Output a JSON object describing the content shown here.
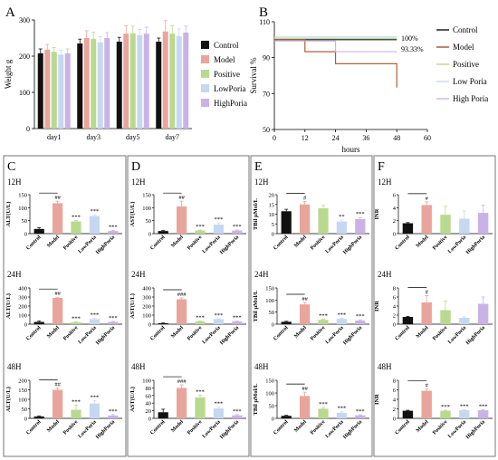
{
  "panel_letters": [
    "A",
    "B",
    "C",
    "D",
    "E",
    "F"
  ],
  "colors": {
    "Control": "#111111",
    "Model": "#e9a59b",
    "Positive": "#b9d98f",
    "LowPoria": "#c6d8f1",
    "HighPoria": "#c9b3e6"
  },
  "chart_data": [
    {
      "panel": "A",
      "type": "bar",
      "ylabel": "Weight g",
      "categories": [
        "day1",
        "day3",
        "day5",
        "day7"
      ],
      "ylim": [
        0,
        300
      ],
      "yticks": [
        0,
        100,
        200,
        300
      ],
      "legend": [
        "Control",
        "Model",
        "Positive",
        "LowPoria",
        "HighPoria"
      ],
      "legend_position": "right",
      "series": [
        {
          "name": "Control",
          "values": [
            208,
            235,
            240,
            240
          ],
          "errors": [
            12,
            12,
            12,
            10
          ]
        },
        {
          "name": "Model",
          "values": [
            218,
            250,
            262,
            268
          ],
          "errors": [
            14,
            20,
            22,
            30
          ]
        },
        {
          "name": "Positive",
          "values": [
            212,
            248,
            263,
            262
          ],
          "errors": [
            12,
            18,
            20,
            22
          ]
        },
        {
          "name": "LowPoria",
          "values": [
            204,
            238,
            258,
            255
          ],
          "errors": [
            12,
            16,
            16,
            20
          ]
        },
        {
          "name": "HighPoria",
          "values": [
            208,
            250,
            262,
            265
          ],
          "errors": [
            12,
            15,
            18,
            18
          ]
        }
      ]
    },
    {
      "panel": "B",
      "type": "line",
      "xlabel": "hours",
      "ylabel": "Survival %",
      "xlim": [
        0,
        60
      ],
      "ylim": [
        50,
        110
      ],
      "xticks": [
        0,
        12,
        24,
        36,
        48,
        60
      ],
      "yticks": [
        50,
        70,
        90,
        110
      ],
      "legend": [
        "Control",
        "Model",
        "Positive",
        "Low Poria",
        "High Poria"
      ],
      "legend_position": "right",
      "annotations": [
        "100%",
        "93.33%"
      ],
      "series": [
        {
          "name": "Control",
          "x": [
            0,
            12,
            24,
            48
          ],
          "y": [
            100,
            100,
            100,
            100
          ]
        },
        {
          "name": "Model",
          "x": [
            0,
            12,
            24,
            48,
            48
          ],
          "y": [
            100,
            93.33,
            86.67,
            86.67,
            73.33
          ]
        },
        {
          "name": "Positive",
          "x": [
            0,
            12,
            24,
            48
          ],
          "y": [
            100,
            100,
            100,
            100
          ]
        },
        {
          "name": "Low Poria",
          "x": [
            0,
            12,
            24,
            48
          ],
          "y": [
            100,
            100,
            100,
            100
          ]
        },
        {
          "name": "High Poria",
          "x": [
            0,
            12,
            24,
            48
          ],
          "y": [
            100,
            100,
            93.33,
            93.33
          ]
        }
      ]
    },
    {
      "panel": "C",
      "type": "bar",
      "ylabel": "ALT(U/L)",
      "categories": [
        "Control",
        "Model",
        "Positive",
        "LowPoria",
        "HighPoria"
      ],
      "subplots": [
        {
          "time": "12H",
          "ylim": [
            0,
            150
          ],
          "yticks": [
            0,
            50,
            100,
            150
          ],
          "values": [
            18,
            117,
            47,
            68,
            10
          ],
          "errors": [
            5,
            8,
            4,
            5,
            2
          ],
          "marks": [
            "",
            "##",
            "***",
            "***",
            "***"
          ]
        },
        {
          "time": "24H",
          "ylim": [
            0,
            400
          ],
          "yticks": [
            0,
            100,
            200,
            300,
            400
          ],
          "values": [
            25,
            290,
            22,
            55,
            25
          ],
          "errors": [
            10,
            8,
            5,
            8,
            4
          ],
          "marks": [
            "",
            "##",
            "***",
            "***",
            "***"
          ]
        },
        {
          "time": "48H",
          "ylim": [
            0,
            200
          ],
          "yticks": [
            0,
            50,
            100,
            150,
            200
          ],
          "values": [
            10,
            150,
            45,
            78,
            15
          ],
          "errors": [
            3,
            10,
            25,
            15,
            5
          ],
          "marks": [
            "",
            "##",
            "***",
            "***",
            "***"
          ]
        }
      ]
    },
    {
      "panel": "D",
      "type": "bar",
      "ylabel": "AST(U/L)",
      "categories": [
        "Control",
        "Model",
        "Positive",
        "LowPoria",
        "HighPoria"
      ],
      "subplots": [
        {
          "time": "12H",
          "ylim": [
            0,
            150
          ],
          "yticks": [
            0,
            50,
            100,
            150
          ],
          "values": [
            10,
            105,
            12,
            35,
            12
          ],
          "errors": [
            2,
            20,
            2,
            6,
            2
          ],
          "marks": [
            "",
            "##",
            "***",
            "***",
            "***"
          ]
        },
        {
          "time": "24H",
          "ylim": [
            0,
            400
          ],
          "yticks": [
            0,
            100,
            200,
            300,
            400
          ],
          "values": [
            10,
            275,
            30,
            55,
            30
          ],
          "errors": [
            3,
            15,
            4,
            5,
            4
          ],
          "marks": [
            "",
            "###",
            "***",
            "***",
            "***"
          ]
        },
        {
          "time": "48H",
          "ylim": [
            0,
            100
          ],
          "yticks": [
            0,
            20,
            40,
            60,
            80,
            100
          ],
          "values": [
            16,
            80,
            55,
            26,
            8
          ],
          "errors": [
            8,
            8,
            6,
            4,
            2
          ],
          "marks": [
            "",
            "###",
            "***",
            "***",
            "***"
          ]
        }
      ]
    },
    {
      "panel": "E",
      "type": "bar",
      "ylabel": "TBil μMol/L",
      "categories": [
        "Control",
        "Model",
        "Positive",
        "LowPoria",
        "HighPoria"
      ],
      "subplots": [
        {
          "time": "12H",
          "ylim": [
            0,
            20
          ],
          "yticks": [
            0,
            5,
            10,
            15,
            20
          ],
          "values": [
            11.5,
            15,
            13,
            6.2,
            7.5
          ],
          "errors": [
            1,
            1.5,
            1.5,
            0.8,
            0.8
          ],
          "marks": [
            "",
            "#",
            "",
            "**",
            "***"
          ]
        },
        {
          "time": "24H",
          "ylim": [
            0,
            150
          ],
          "yticks": [
            0,
            50,
            100,
            150
          ],
          "values": [
            10,
            82,
            18,
            22,
            15
          ],
          "errors": [
            2,
            8,
            3,
            3,
            3
          ],
          "marks": [
            "",
            "##",
            "***",
            "***",
            "***"
          ]
        },
        {
          "time": "48H",
          "ylim": [
            0,
            150
          ],
          "yticks": [
            0,
            50,
            100,
            150
          ],
          "values": [
            10,
            88,
            38,
            22,
            12
          ],
          "errors": [
            2,
            15,
            5,
            4,
            2
          ],
          "marks": [
            "",
            "##",
            "***",
            "***",
            "***"
          ]
        }
      ]
    },
    {
      "panel": "F",
      "type": "bar",
      "ylabel": "INR",
      "categories": [
        "Control",
        "Model",
        "Positive",
        "LowPoria",
        "HighPoria"
      ],
      "subplots": [
        {
          "time": "12H",
          "ylim": [
            0,
            6
          ],
          "yticks": [
            0,
            2,
            4,
            6
          ],
          "values": [
            1.6,
            4.4,
            2.9,
            2.3,
            3.2
          ],
          "errors": [
            0.1,
            0.5,
            1.3,
            1.2,
            1.2
          ],
          "marks": [
            "",
            "#",
            "",
            "",
            ""
          ]
        },
        {
          "time": "24H",
          "ylim": [
            0,
            8
          ],
          "yticks": [
            0,
            2,
            4,
            6,
            8
          ],
          "values": [
            1.6,
            4.8,
            3.1,
            1.4,
            4.5
          ],
          "errors": [
            0.1,
            1.5,
            2.0,
            0.2,
            1.5
          ],
          "marks": [
            "",
            "#",
            "",
            "",
            ""
          ]
        },
        {
          "time": "48H",
          "ylim": [
            0,
            8
          ],
          "yticks": [
            0,
            2,
            4,
            6,
            8
          ],
          "values": [
            1.6,
            5.8,
            1.6,
            1.7,
            1.7
          ],
          "errors": [
            0.1,
            0.4,
            0.1,
            0.1,
            0.1
          ],
          "marks": [
            "",
            "#",
            "***",
            "***",
            "***"
          ]
        }
      ]
    }
  ]
}
